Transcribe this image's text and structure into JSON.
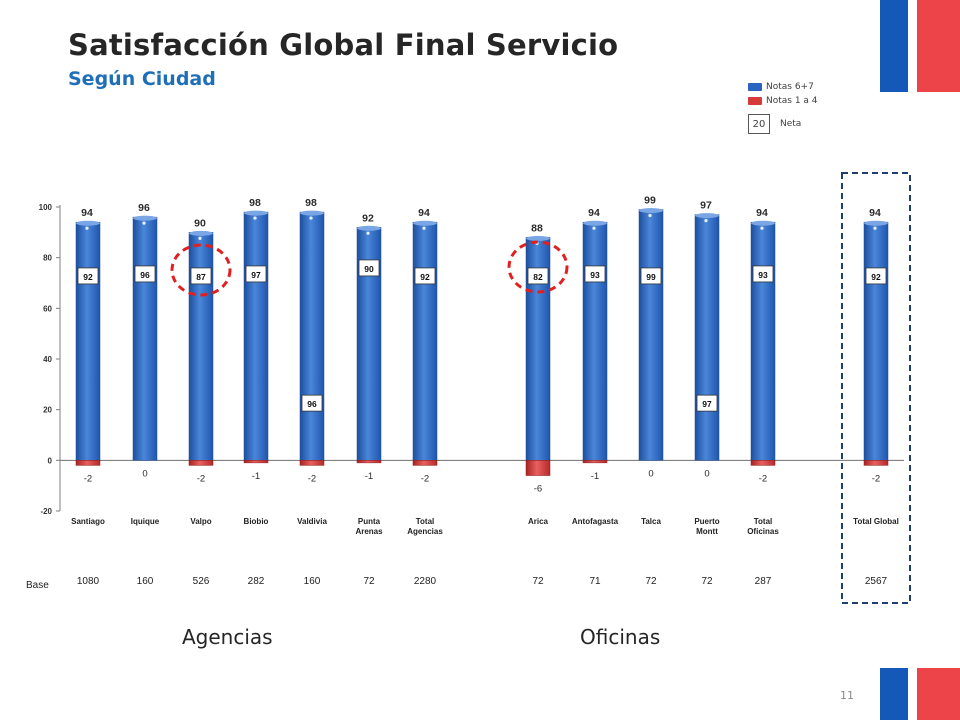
{
  "title": "Satisfacción Global Final Servicio",
  "subtitle": "Según Ciudad",
  "page_number": "11",
  "legend": {
    "positive_label": "Notas 6+7",
    "negative_label": "Notas 1 a 4",
    "net_example": "20",
    "net_label": "Neta"
  },
  "base_label": "Base",
  "group_labels": [
    "Agencias",
    "Oficinas"
  ],
  "colors": {
    "positive": "#2b63c0",
    "negative": "#d63a3a",
    "highlight": "#e02020",
    "frame": "#1f3f6e"
  },
  "chart_data": {
    "type": "bar",
    "ylim": [
      -20,
      100
    ],
    "yticks": [
      "100",
      "80",
      "60",
      "40",
      "20",
      "0",
      "-20"
    ],
    "categories": [
      "Santiago",
      "Iquique",
      "Valpo",
      "Biobio",
      "Valdivia",
      "Punta Arenas",
      "Total Agencias",
      "Arica",
      "Antofagasta",
      "Talca",
      "Puerto Montt",
      "Total Oficinas",
      "Total Global"
    ],
    "category_lines": [
      [
        "Santiago"
      ],
      [
        "Iquique"
      ],
      [
        "Valpo"
      ],
      [
        "Biobio"
      ],
      [
        "Valdivia"
      ],
      [
        "Punta",
        "Arenas"
      ],
      [
        "Total",
        "Agencias"
      ],
      [
        "Arica"
      ],
      [
        "Antofagasta"
      ],
      [
        "Talca"
      ],
      [
        "Puerto",
        "Montt"
      ],
      [
        "Total",
        "Oficinas"
      ],
      [
        "Total Global"
      ]
    ],
    "series": [
      {
        "name": "Notas 6+7",
        "values": [
          94,
          96,
          90,
          98,
          98,
          92,
          94,
          88,
          94,
          99,
          97,
          94,
          94
        ]
      },
      {
        "name": "Notas 1 a 4",
        "values": [
          -2,
          0,
          -2,
          -1,
          -2,
          -1,
          -2,
          -6,
          -1,
          0,
          0,
          -2,
          -2
        ]
      },
      {
        "name": "Neta",
        "values": [
          92,
          96,
          87,
          97,
          96,
          90,
          92,
          82,
          93,
          99,
          97,
          93,
          92
        ]
      }
    ],
    "positive_labels": [
      "94",
      "96",
      "90",
      "98",
      "98",
      "92",
      "94",
      "88",
      "94",
      "99",
      "97",
      "94",
      "94"
    ],
    "negative_labels": [
      "-2",
      "0",
      "-2",
      "-1",
      "-2",
      "-1",
      "-2",
      "-6",
      "-1",
      "0",
      "0",
      "-2",
      "-2"
    ],
    "net_labels": [
      "92",
      "96",
      "87",
      "97",
      "96",
      "90",
      "92",
      "82",
      "93",
      "99",
      "97",
      "93",
      "92"
    ],
    "base": [
      "1080",
      "160",
      "526",
      "282",
      "160",
      "72",
      "2280",
      "72",
      "71",
      "72",
      "72",
      "287",
      "2567"
    ],
    "highlighted": [
      "Valpo",
      "Arica"
    ],
    "framed": [
      "Total Global"
    ]
  }
}
